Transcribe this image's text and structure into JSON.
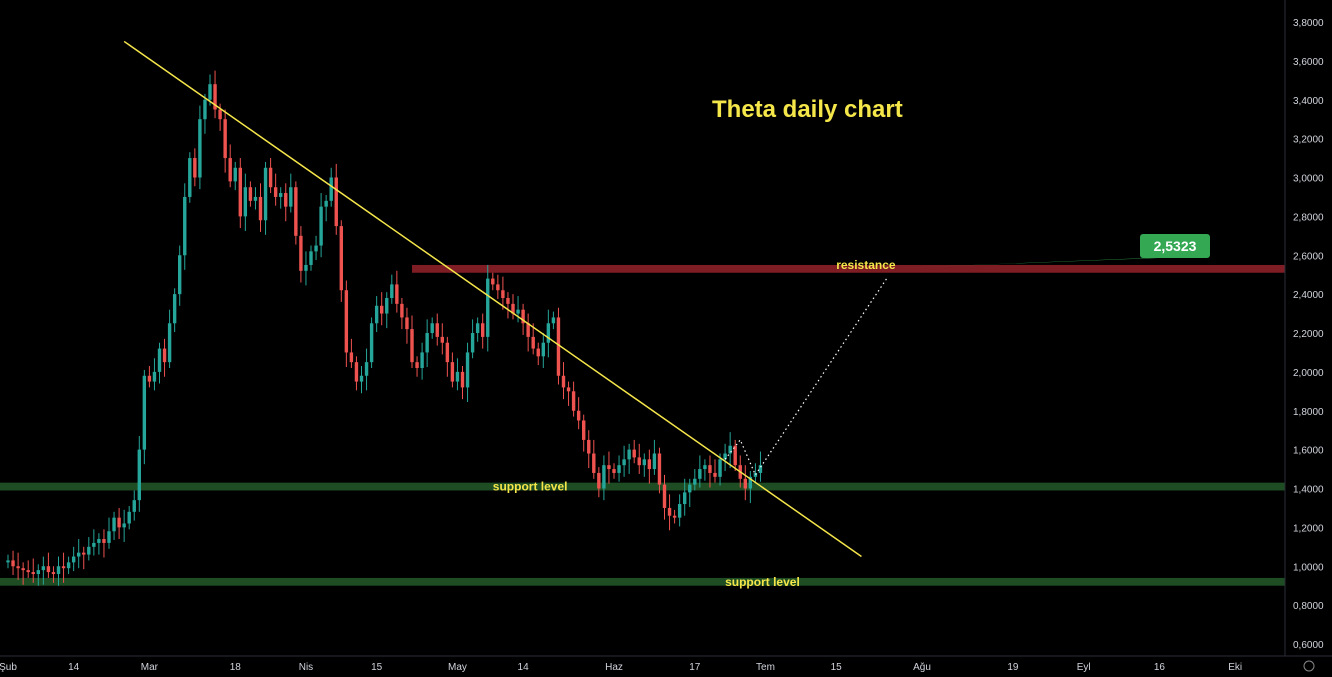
{
  "chart_data": {
    "type": "candlestick",
    "title": "Theta daily chart",
    "colors": {
      "up": "#26a69a",
      "down": "#ef5350",
      "trendline": "#f5e64a",
      "resistance_zone": "#7f1d25",
      "support_zone": "#1f4d23",
      "target_badge": "#34a853",
      "axis_text": "#d1d4dc"
    },
    "y_axis": {
      "range": [
        0.5,
        3.9
      ],
      "ticks": [
        "3,8000",
        "3,6000",
        "3,4000",
        "3,2000",
        "3,0000",
        "2,8000",
        "2,6000",
        "2,4000",
        "2,2000",
        "2,0000",
        "1,8000",
        "1,6000",
        "1,4000",
        "1,2000",
        "1,0000",
        "0,8000",
        "0,6000"
      ],
      "tick_values": [
        3.8,
        3.6,
        3.4,
        3.2,
        3.0,
        2.8,
        2.6,
        2.4,
        2.2,
        2.0,
        1.8,
        1.6,
        1.4,
        1.2,
        1.0,
        0.8,
        0.6
      ]
    },
    "x_axis": {
      "ticks": [
        {
          "label": "Şub",
          "day": 0
        },
        {
          "label": "14",
          "day": 13
        },
        {
          "label": "Mar",
          "day": 28
        },
        {
          "label": "18",
          "day": 45
        },
        {
          "label": "Nis",
          "day": 59
        },
        {
          "label": "15",
          "day": 73
        },
        {
          "label": "May",
          "day": 89
        },
        {
          "label": "14",
          "day": 102
        },
        {
          "label": "Haz",
          "day": 120
        },
        {
          "label": "17",
          "day": 136
        },
        {
          "label": "Tem",
          "day": 150
        },
        {
          "label": "15",
          "day": 164
        },
        {
          "label": "Ağu",
          "day": 181
        },
        {
          "label": "19",
          "day": 199
        },
        {
          "label": "Eyl",
          "day": 213
        },
        {
          "label": "16",
          "day": 228
        },
        {
          "label": "Eki",
          "day": 243
        }
      ]
    },
    "candles_close": [
      1.03,
      1.0,
      0.99,
      0.98,
      0.97,
      0.96,
      0.98,
      1.0,
      0.97,
      0.96,
      1.0,
      0.99,
      1.02,
      1.05,
      1.07,
      1.06,
      1.1,
      1.12,
      1.14,
      1.12,
      1.18,
      1.25,
      1.2,
      1.22,
      1.28,
      1.34,
      1.6,
      1.98,
      1.95,
      2.0,
      2.12,
      2.05,
      2.25,
      2.4,
      2.6,
      2.9,
      3.1,
      3.0,
      3.3,
      3.4,
      3.48,
      3.35,
      3.3,
      3.1,
      2.98,
      3.05,
      2.8,
      2.95,
      2.88,
      2.9,
      2.78,
      3.05,
      2.95,
      2.9,
      2.92,
      2.85,
      2.95,
      2.7,
      2.52,
      2.55,
      2.62,
      2.65,
      2.85,
      2.88,
      3.0,
      2.75,
      2.42,
      2.1,
      2.05,
      1.95,
      1.98,
      2.05,
      2.25,
      2.34,
      2.3,
      2.38,
      2.45,
      2.35,
      2.28,
      2.22,
      2.05,
      2.02,
      2.1,
      2.2,
      2.25,
      2.18,
      2.15,
      2.05,
      1.95,
      2.0,
      1.92,
      2.1,
      2.2,
      2.25,
      2.18,
      2.48,
      2.45,
      2.42,
      2.38,
      2.35,
      2.3,
      2.32,
      2.25,
      2.18,
      2.12,
      2.08,
      2.15,
      2.25,
      2.28,
      1.98,
      1.92,
      1.9,
      1.8,
      1.75,
      1.65,
      1.58,
      1.48,
      1.4,
      1.52,
      1.5,
      1.48,
      1.52,
      1.55,
      1.6,
      1.56,
      1.52,
      1.55,
      1.5,
      1.58,
      1.42,
      1.3,
      1.26,
      1.25,
      1.32,
      1.38,
      1.42,
      1.45,
      1.5,
      1.52,
      1.48,
      1.46,
      1.55,
      1.58,
      1.62,
      1.52,
      1.45,
      1.4,
      1.46,
      1.48,
      1.52
    ],
    "series": [
      {
        "name": "trendline",
        "points": [
          {
            "day": 23,
            "value": 3.7
          },
          {
            "day": 169,
            "value": 1.05
          }
        ]
      },
      {
        "name": "resistance",
        "range": [
          2.51,
          2.55
        ]
      },
      {
        "name": "support level",
        "range": [
          1.39,
          1.43
        ]
      },
      {
        "name": "support level",
        "range": [
          0.9,
          0.94
        ]
      },
      {
        "name": "projection",
        "points": [
          {
            "day": 142,
            "value": 1.55
          },
          {
            "day": 145,
            "value": 1.65
          },
          {
            "day": 148,
            "value": 1.47
          },
          {
            "day": 174,
            "value": 2.48
          }
        ]
      }
    ],
    "annotations": [
      {
        "text": "resistance",
        "day": 164,
        "value": 2.55
      },
      {
        "text": "support level",
        "day": 96,
        "value": 1.41
      },
      {
        "text": "support level",
        "day": 142,
        "value": 0.92
      }
    ],
    "target_label": "2,5323",
    "target_point": {
      "day": 174,
      "value": 2.5323
    }
  }
}
